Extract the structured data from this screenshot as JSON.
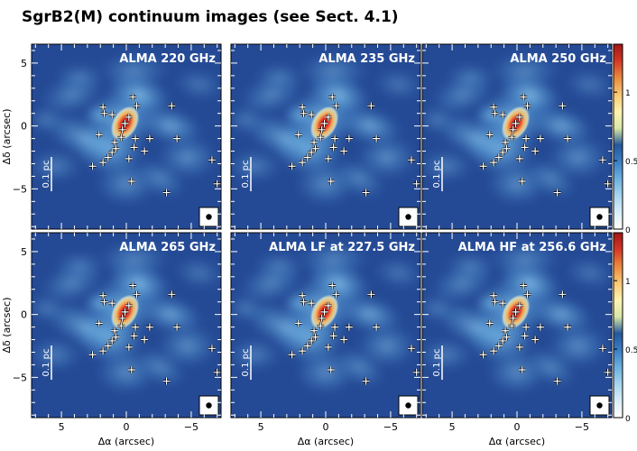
{
  "title": "SgrB2(M) continuum images (see Sect. 4.1)",
  "chart_data": {
    "type": "heatmap",
    "panels": [
      {
        "label": "ALMA 220 GHz"
      },
      {
        "label": "ALMA 235 GHz"
      },
      {
        "label": "ALMA 250 GHz"
      },
      {
        "label": "ALMA 265 GHz"
      },
      {
        "label": "ALMA LF at 227.5 GHz"
      },
      {
        "label": "ALMA HF at 256.6 GHz"
      }
    ],
    "xlabel": "Δα (arcsec)",
    "ylabel": "Δδ (arcsec)",
    "xlim": [
      7.3,
      -7.3
    ],
    "ylim": [
      -8.2,
      6.5
    ],
    "x_ticks": [
      5,
      0,
      -5
    ],
    "y_ticks": [
      5,
      0,
      -5
    ],
    "scalebar_label": "0.1 pc",
    "colorbar": {
      "ticks": [
        0,
        0.5,
        1
      ],
      "range": [
        0,
        1.35
      ],
      "colors": [
        "#ffffff",
        "#d9eef9",
        "#a7d4ef",
        "#6bb0df",
        "#3b7fc6",
        "#24579c",
        "#d8e7a8",
        "#fff4b0",
        "#f8c873",
        "#ea8a40",
        "#d43826",
        "#a31515"
      ]
    },
    "background_color": "#254a95",
    "sources": [
      [
        -0.5,
        2.3
      ],
      [
        -0.8,
        1.6
      ],
      [
        1.8,
        1.5
      ],
      [
        1.7,
        1.0
      ],
      [
        -3.5,
        1.6
      ],
      [
        1.1,
        0.9
      ],
      [
        -0.2,
        0.7
      ],
      [
        0.1,
        0.2
      ],
      [
        0.3,
        -0.3
      ],
      [
        2.1,
        -0.7
      ],
      [
        0.4,
        -0.9
      ],
      [
        -0.7,
        -1.0
      ],
      [
        -1.8,
        -1.0
      ],
      [
        0.9,
        -1.3
      ],
      [
        -3.9,
        -1.0
      ],
      [
        0.8,
        -1.8
      ],
      [
        -0.6,
        -1.7
      ],
      [
        -1.4,
        -2.0
      ],
      [
        1.1,
        -2.1
      ],
      [
        1.4,
        -2.5
      ],
      [
        -0.2,
        -2.6
      ],
      [
        1.8,
        -2.9
      ],
      [
        2.6,
        -3.2
      ],
      [
        -0.4,
        -4.4
      ],
      [
        -3.1,
        -5.3
      ],
      [
        -6.6,
        -2.7
      ],
      [
        -7.0,
        -4.6
      ]
    ]
  }
}
